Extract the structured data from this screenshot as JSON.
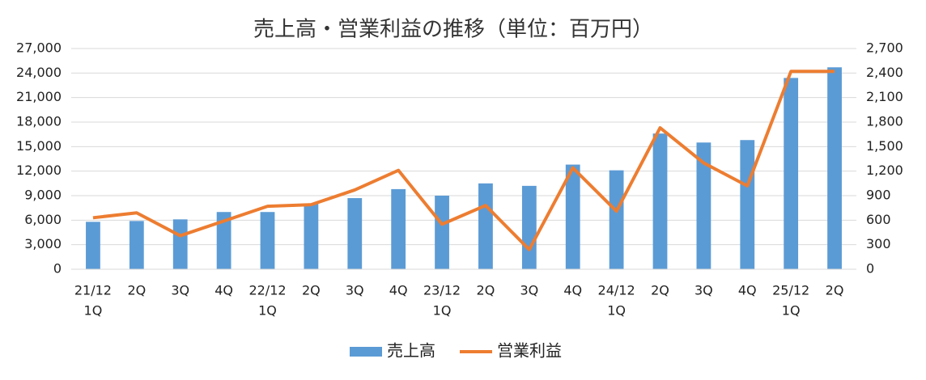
{
  "chart_data": {
    "type": "bar-line",
    "title": "売上高・営業利益の推移（単位：百万円）",
    "categories": [
      [
        "21/12",
        "1Q"
      ],
      [
        "2Q"
      ],
      [
        "3Q"
      ],
      [
        "4Q"
      ],
      [
        "22/12",
        "1Q"
      ],
      [
        "2Q"
      ],
      [
        "3Q"
      ],
      [
        "4Q"
      ],
      [
        "23/12",
        "1Q"
      ],
      [
        "2Q"
      ],
      [
        "3Q"
      ],
      [
        "4Q"
      ],
      [
        "24/12",
        "1Q"
      ],
      [
        "2Q"
      ],
      [
        "3Q"
      ],
      [
        "4Q"
      ],
      [
        "25/12",
        "1Q"
      ],
      [
        "2Q"
      ]
    ],
    "series": [
      {
        "name": "売上高",
        "type": "bar",
        "color": "#5b9bd5",
        "values": [
          5800,
          5900,
          6100,
          7000,
          7000,
          8000,
          8700,
          9800,
          9000,
          10500,
          10200,
          12800,
          12100,
          16600,
          15500,
          15800,
          23400,
          24700
        ]
      },
      {
        "name": "営業利益",
        "type": "line",
        "axis": "y2",
        "color": "#ed7d31",
        "values": [
          630,
          690,
          410,
          590,
          770,
          790,
          970,
          1210,
          550,
          780,
          240,
          1240,
          710,
          1730,
          1300,
          1020,
          2420,
          2420
        ]
      }
    ],
    "ylim": [
      0,
      27000
    ],
    "yticks": [
      0,
      {
        "value": 3000,
        "label": "3,000"
      },
      {
        "value": 6000,
        "label": "6,000"
      },
      {
        "value": 9000,
        "label": "9,000"
      },
      {
        "value": 12000,
        "label": "12,000"
      },
      {
        "value": 15000,
        "label": "15,000"
      },
      {
        "value": 18000,
        "label": "18,000"
      },
      {
        "value": 21000,
        "label": "21,000"
      },
      {
        "value": 24000,
        "label": "24,000"
      },
      {
        "value": 27000,
        "label": "27,000"
      }
    ],
    "y2lim": [
      0,
      2700
    ],
    "y2ticks": [
      0,
      300,
      600,
      900,
      {
        "value": 1200,
        "label": "1,200"
      },
      {
        "value": 1500,
        "label": "1,500"
      },
      {
        "value": 1800,
        "label": "1,800"
      },
      {
        "value": 2100,
        "label": "2,100"
      },
      {
        "value": 2400,
        "label": "2,400"
      },
      {
        "value": 2700,
        "label": "2,700"
      }
    ],
    "grid": true,
    "legend": "bottom"
  }
}
